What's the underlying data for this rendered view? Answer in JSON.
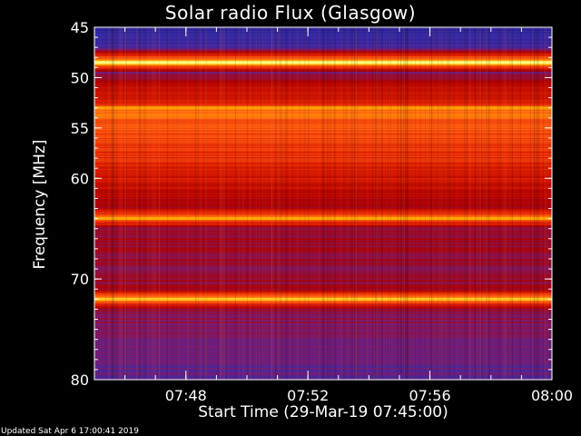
{
  "chart_data": {
    "type": "heatmap",
    "title": "Solar radio Flux (Glasgow)",
    "xlabel": "Start Time (29-Mar-19 07:45:00)",
    "ylabel": "Frequency [MHz]",
    "x_ticks": [
      "07:48",
      "07:52",
      "07:56",
      "08:00"
    ],
    "y_ticks": [
      "45",
      "50",
      "55",
      "60",
      "70",
      "80"
    ],
    "xlim": [
      "07:45",
      "08:00"
    ],
    "ylim": [
      45,
      80
    ],
    "colormap": [
      "#1a1a80",
      "#3a2aa6",
      "#7a1a70",
      "#b00000",
      "#e02000",
      "#ff5a10",
      "#ffb000",
      "#ffff80"
    ],
    "bands": [
      {
        "mhz": 45.0,
        "level": 0.1
      },
      {
        "mhz": 46.0,
        "level": 0.12
      },
      {
        "mhz": 47.0,
        "level": 0.16
      },
      {
        "mhz": 48.5,
        "level": 0.95
      },
      {
        "mhz": 49.5,
        "level": 0.3
      },
      {
        "mhz": 50.5,
        "level": 0.45
      },
      {
        "mhz": 51.5,
        "level": 0.5
      },
      {
        "mhz": 52.5,
        "level": 0.55
      },
      {
        "mhz": 53.0,
        "level": 0.78
      },
      {
        "mhz": 54.0,
        "level": 0.72
      },
      {
        "mhz": 55.0,
        "level": 0.7
      },
      {
        "mhz": 56.0,
        "level": 0.66
      },
      {
        "mhz": 57.5,
        "level": 0.62
      },
      {
        "mhz": 59.0,
        "level": 0.55
      },
      {
        "mhz": 61.0,
        "level": 0.48
      },
      {
        "mhz": 63.0,
        "level": 0.42
      },
      {
        "mhz": 64.0,
        "level": 0.8
      },
      {
        "mhz": 65.0,
        "level": 0.35
      },
      {
        "mhz": 67.0,
        "level": 0.4
      },
      {
        "mhz": 69.0,
        "level": 0.32
      },
      {
        "mhz": 71.0,
        "level": 0.38
      },
      {
        "mhz": 72.0,
        "level": 0.85
      },
      {
        "mhz": 73.0,
        "level": 0.35
      },
      {
        "mhz": 75.0,
        "level": 0.3
      },
      {
        "mhz": 77.0,
        "level": 0.26
      },
      {
        "mhz": 79.0,
        "level": 0.22
      }
    ]
  },
  "footer": {
    "updated": "Updated Sat Apr  6 17:00:41 2019"
  }
}
